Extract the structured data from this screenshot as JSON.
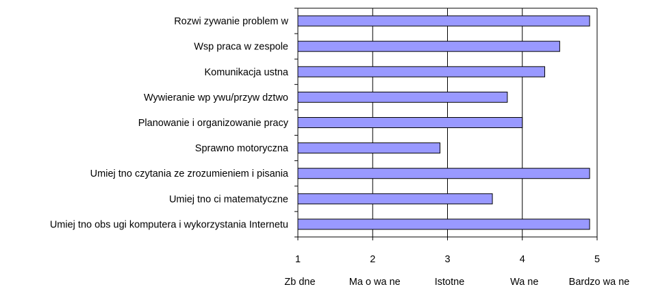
{
  "chart_data": {
    "type": "bar",
    "orientation": "horizontal",
    "categories": [
      "Rozwi zywanie problem w",
      "Wsp praca w zespole",
      "Komunikacja ustna",
      "Wywieranie wp ywu/przyw dztwo",
      "Planowanie i organizowanie pracy",
      "Sprawno motoryczna",
      "Umiej tno czytania ze zrozumieniem i pisania",
      "Umiej tno ci matematyczne",
      "Umiej tno obs ugi komputera i wykorzystania Internetu"
    ],
    "values": [
      4.9,
      4.5,
      4.3,
      3.8,
      4.0,
      2.9,
      4.9,
      3.6,
      4.9
    ],
    "xlim": [
      1,
      5
    ],
    "x_ticks": [
      1,
      2,
      3,
      4,
      5
    ],
    "x_tick_labels": [
      "1",
      "2",
      "3",
      "4",
      "5"
    ],
    "x_scale_labels": [
      "Zb dne",
      "Ma o wa ne",
      "Istotne",
      "Wa ne",
      "Bardzo wa ne"
    ],
    "grid": true,
    "legend": "none",
    "title": "",
    "xlabel": "",
    "ylabel": "",
    "bar_color": "#9999ff",
    "bar_edge_color": "#000000"
  }
}
